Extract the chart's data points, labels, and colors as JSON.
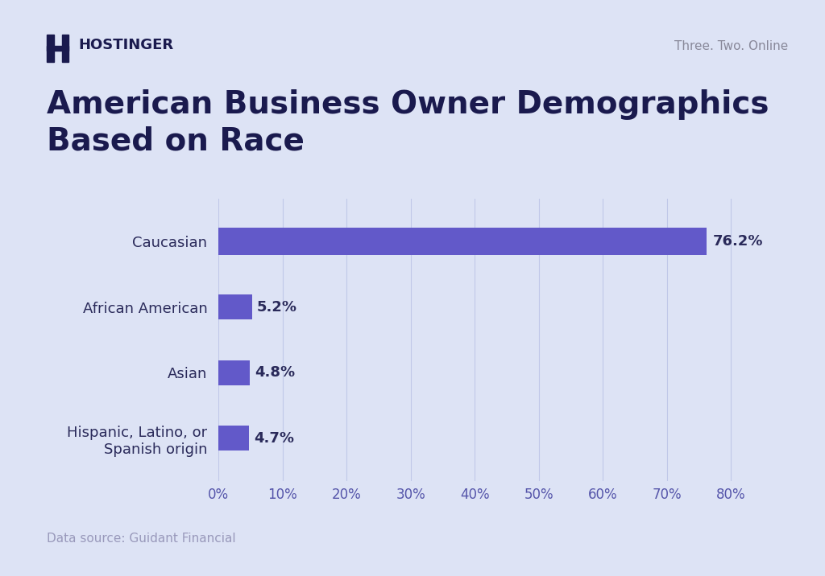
{
  "title": "American Business Owner Demographics\nBased on Race",
  "categories": [
    "Caucasian",
    "African American",
    "Asian",
    "Hispanic, Latino, or\nSpanish origin"
  ],
  "values": [
    76.2,
    5.2,
    4.8,
    4.7
  ],
  "bar_color": "#6259c9",
  "background_color": "#dde3f5",
  "title_color": "#1a1a4e",
  "label_color": "#2a2a5a",
  "tick_color": "#5555aa",
  "data_label_color": "#2a2a5a",
  "source_text": "Data source: Guidant Financial",
  "source_color": "#9999bb",
  "header_right": "Three. Two. Online",
  "header_right_color": "#888899",
  "xlim": [
    0,
    85
  ],
  "xticks": [
    0,
    10,
    20,
    30,
    40,
    50,
    60,
    70,
    80
  ],
  "title_fontsize": 28,
  "label_fontsize": 13,
  "tick_fontsize": 12,
  "value_fontsize": 13,
  "source_fontsize": 11,
  "bar_height": 0.38,
  "caucasian_bar_height": 0.42
}
